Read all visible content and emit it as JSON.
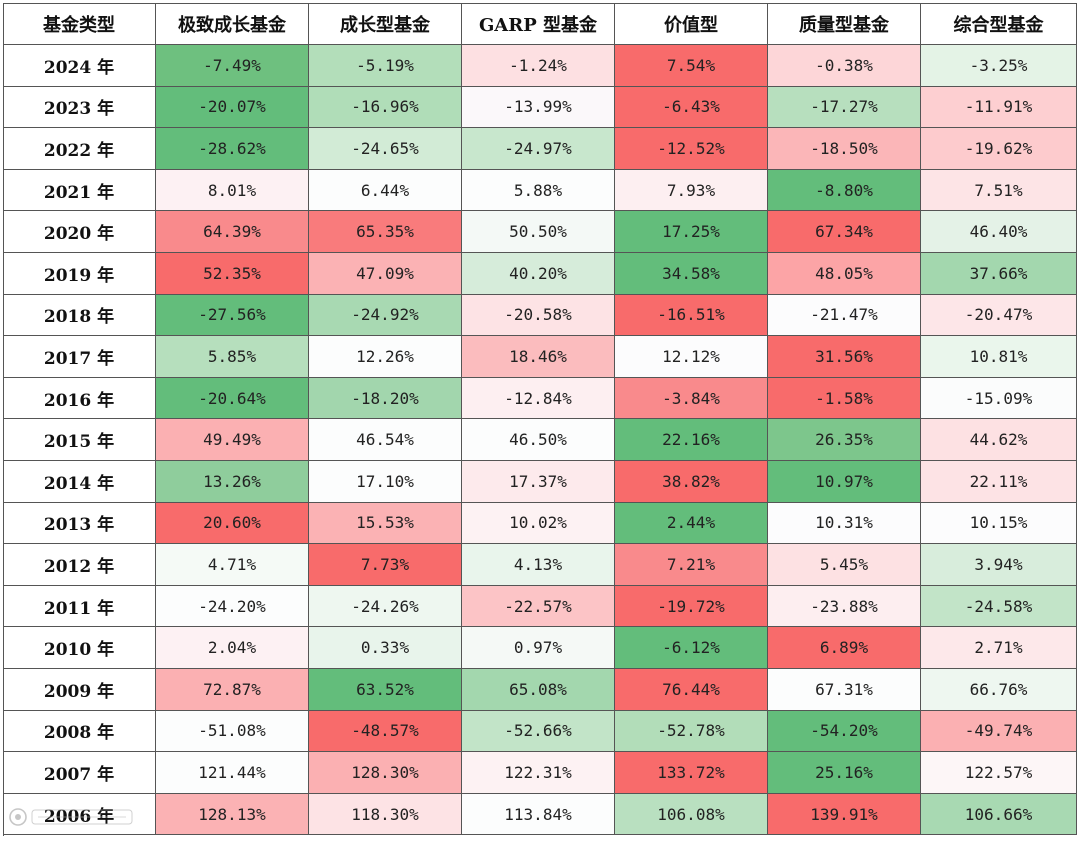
{
  "chart_data": {
    "type": "table",
    "columns": [
      "基金类型",
      "极致成长基金",
      "成长型基金",
      "GARP 型基金",
      "价值型",
      "质量型基金",
      "综合型基金"
    ],
    "rows": [
      {
        "year": "2024 年",
        "values": [
          "-7.49%",
          "-5.19%",
          "-1.24%",
          "7.54%",
          "-0.38%",
          "-3.25%"
        ],
        "colors": [
          "#6ec07f",
          "#b3deba",
          "#fde0e2",
          "#f86b6b",
          "#fdd6d8",
          "#e4f3e6"
        ]
      },
      {
        "year": "2023 年",
        "values": [
          "-20.07%",
          "-16.96%",
          "-13.99%",
          "-6.43%",
          "-17.27%",
          "-11.91%"
        ],
        "colors": [
          "#63bd7b",
          "#b0ddb8",
          "#fbf8fa",
          "#f86b6b",
          "#b7dfbe",
          "#fdcfd1"
        ]
      },
      {
        "year": "2022 年",
        "values": [
          "-28.62%",
          "-24.65%",
          "-24.97%",
          "-12.52%",
          "-18.50%",
          "-19.62%"
        ],
        "colors": [
          "#63bd7b",
          "#d2ebd6",
          "#c8e7cd",
          "#f86b6b",
          "#fbb6b8",
          "#fdcbcd"
        ]
      },
      {
        "year": "2021 年",
        "values": [
          "8.01%",
          "6.44%",
          "5.88%",
          "7.93%",
          "-8.80%",
          "7.51%"
        ],
        "colors": [
          "#fdf1f3",
          "#fcfdfd",
          "#fcfdfd",
          "#fdeff1",
          "#63bd7b",
          "#fde4e6"
        ]
      },
      {
        "year": "2020 年",
        "values": [
          "64.39%",
          "65.35%",
          "50.50%",
          "17.25%",
          "67.34%",
          "46.40%"
        ],
        "colors": [
          "#f98a8c",
          "#f97b7c",
          "#f4f9f6",
          "#63bd7b",
          "#f86b6b",
          "#e4f2e7"
        ]
      },
      {
        "year": "2019 年",
        "values": [
          "52.35%",
          "47.09%",
          "40.20%",
          "34.58%",
          "48.05%",
          "37.66%"
        ],
        "colors": [
          "#f86b6b",
          "#fbb2b4",
          "#d6ecda",
          "#63bd7b",
          "#fca4a6",
          "#a3d7ae"
        ]
      },
      {
        "year": "2018 年",
        "values": [
          "-27.56%",
          "-24.92%",
          "-20.58%",
          "-16.51%",
          "-21.47%",
          "-20.47%"
        ],
        "colors": [
          "#63bd7b",
          "#a8d9b2",
          "#fde3e5",
          "#f86b6b",
          "#fcfcfd",
          "#fde6e8"
        ]
      },
      {
        "year": "2017 年",
        "values": [
          "5.85%",
          "12.26%",
          "18.46%",
          "12.12%",
          "31.56%",
          "10.81%"
        ],
        "colors": [
          "#b6dfbd",
          "#fcfdfd",
          "#fbbcbe",
          "#fcfcfd",
          "#f86b6b",
          "#eaf6ec"
        ]
      },
      {
        "year": "2016 年",
        "values": [
          "-20.64%",
          "-18.20%",
          "-12.84%",
          "-3.84%",
          "-1.58%",
          "-15.09%"
        ],
        "colors": [
          "#63bd7b",
          "#a2d6ad",
          "#fdeff1",
          "#f98a8c",
          "#f86b6b",
          "#fbfcfc"
        ]
      },
      {
        "year": "2015 年",
        "values": [
          "49.49%",
          "46.54%",
          "46.50%",
          "22.16%",
          "26.35%",
          "44.62%"
        ],
        "colors": [
          "#fbb0b2",
          "#fcfdfd",
          "#fcfdfd",
          "#63bd7b",
          "#7dc68c",
          "#fde1e3"
        ]
      },
      {
        "year": "2014 年",
        "values": [
          "13.26%",
          "17.10%",
          "17.37%",
          "38.82%",
          "10.97%",
          "22.11%"
        ],
        "colors": [
          "#8fcd9c",
          "#fcfdfd",
          "#fdeaec",
          "#f86b6b",
          "#63bd7b",
          "#fde3e5"
        ]
      },
      {
        "year": "2013 年",
        "values": [
          "20.60%",
          "15.53%",
          "10.02%",
          "2.44%",
          "10.31%",
          "10.15%"
        ],
        "colors": [
          "#f86b6b",
          "#fbb2b4",
          "#fdf2f3",
          "#63bd7b",
          "#fcfcfd",
          "#fcfcfd"
        ]
      },
      {
        "year": "2012 年",
        "values": [
          "4.71%",
          "7.73%",
          "4.13%",
          "7.21%",
          "5.45%",
          "3.94%"
        ],
        "colors": [
          "#f5faf6",
          "#f86b6b",
          "#e9f5ec",
          "#f98a8c",
          "#fde1e3",
          "#d8eddc"
        ]
      },
      {
        "year": "2011 年",
        "values": [
          "-24.20%",
          "-24.26%",
          "-22.57%",
          "-19.72%",
          "-23.88%",
          "-24.58%"
        ],
        "colors": [
          "#fcfdfd",
          "#eef7f0",
          "#fcc4c6",
          "#f86b6b",
          "#fdeef0",
          "#c2e4c8"
        ]
      },
      {
        "year": "2010 年",
        "values": [
          "2.04%",
          "0.33%",
          "0.97%",
          "-6.12%",
          "6.89%",
          "2.71%"
        ],
        "colors": [
          "#fdf1f3",
          "#e8f4eb",
          "#f5f9f6",
          "#63bd7b",
          "#f86b6b",
          "#fde8ea"
        ]
      },
      {
        "year": "2009 年",
        "values": [
          "72.87%",
          "63.52%",
          "65.08%",
          "76.44%",
          "67.31%",
          "66.76%"
        ],
        "colors": [
          "#fbb0b2",
          "#63bd7b",
          "#a3d7ae",
          "#f86b6b",
          "#fcfdfd",
          "#eef7f0"
        ]
      },
      {
        "year": "2008 年",
        "values": [
          "-51.08%",
          "-48.57%",
          "-52.66%",
          "-52.78%",
          "-54.20%",
          "-49.74%"
        ],
        "colors": [
          "#fcfdfd",
          "#f86b6b",
          "#c2e4c8",
          "#b2ddb9",
          "#63bd7b",
          "#fbb0b2"
        ]
      },
      {
        "year": "2007 年",
        "values": [
          "121.44%",
          "128.30%",
          "122.31%",
          "133.72%",
          "25.16%",
          "122.57%"
        ],
        "colors": [
          "#fcfdfd",
          "#fbb0b2",
          "#fdf2f3",
          "#f86b6b",
          "#63bd7b",
          "#fdf6f7"
        ]
      },
      {
        "year": "2006 年",
        "values": [
          "128.13%",
          "118.30%",
          "113.84%",
          "106.08%",
          "139.91%",
          "106.66%"
        ],
        "colors": [
          "#fbb2b4",
          "#fde3e5",
          "#fcfdfd",
          "#b9e0c0",
          "#f86b6b",
          "#a8d9b2"
        ]
      }
    ]
  }
}
